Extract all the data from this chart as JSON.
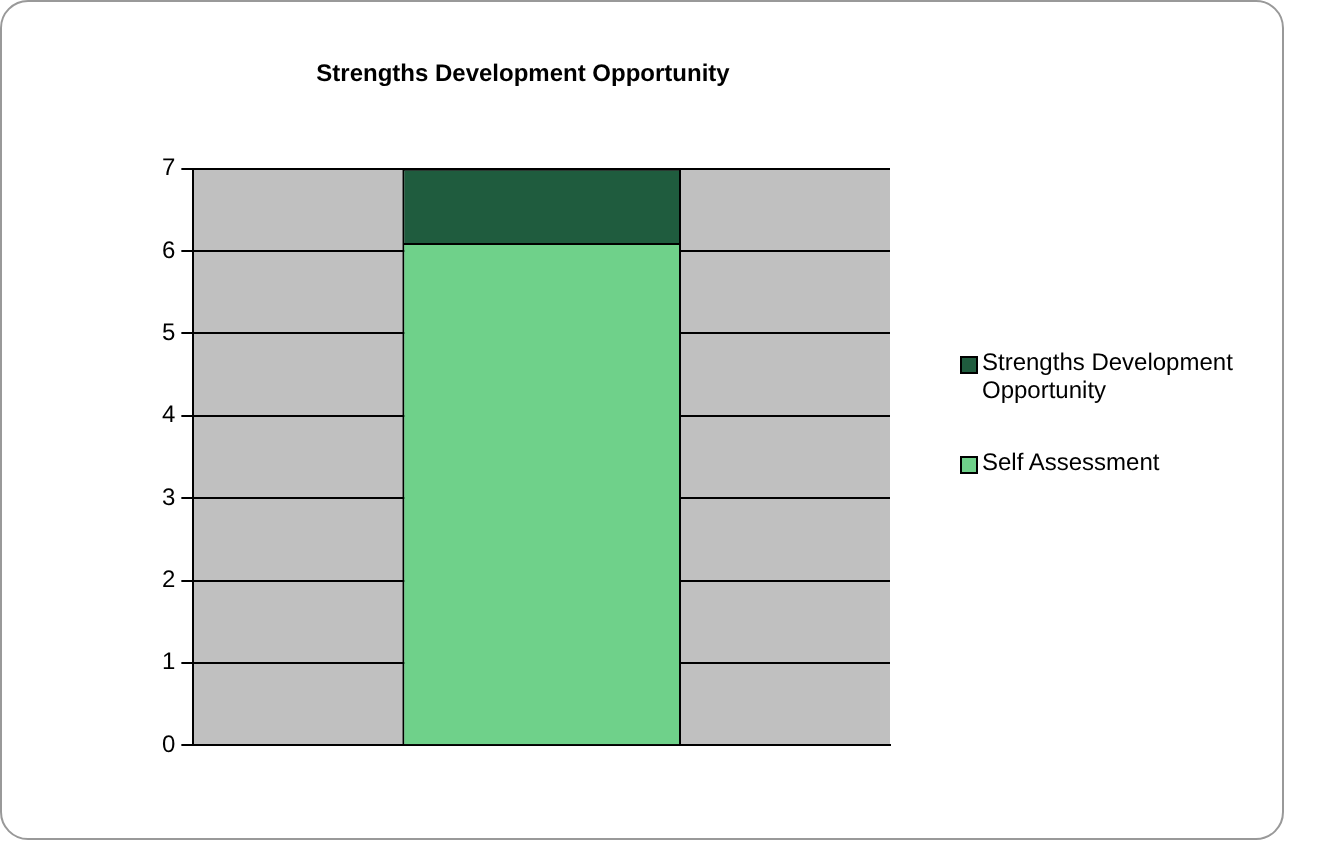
{
  "chart_data": {
    "type": "bar",
    "title": "Strengths Development Opportunity",
    "categories": [
      null
    ],
    "stacked": true,
    "series": [
      {
        "name": "Self Assessment",
        "color": "#6fd18a",
        "values": [
          6.1
        ]
      },
      {
        "name": "Strengths Development Opportunity",
        "color": "#1f5c3e",
        "values": [
          0.9
        ]
      }
    ],
    "ylim": [
      0,
      7
    ],
    "yticks": [
      0,
      1,
      2,
      3,
      4,
      5,
      6,
      7
    ],
    "grid": "y",
    "legend": "right"
  }
}
